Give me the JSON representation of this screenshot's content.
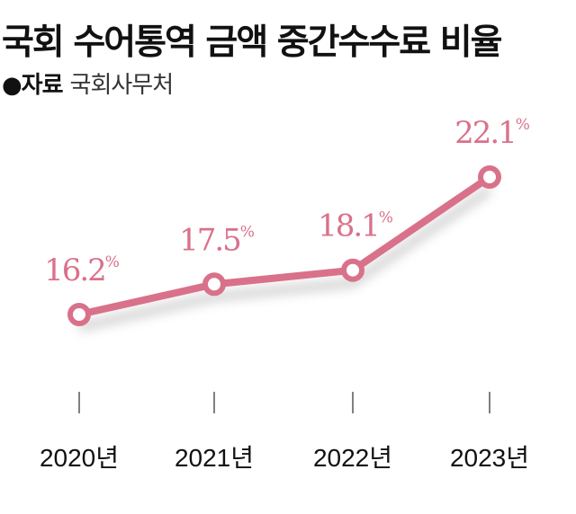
{
  "title": "국회 수어통역 금액 중간수수료 비율",
  "source": {
    "label": "●자료",
    "value": "국회사무처"
  },
  "chart_data": {
    "type": "line",
    "title": "국회 수어통역 금액 중간수수료 비율",
    "categories": [
      "2020년",
      "2021년",
      "2022년",
      "2023년"
    ],
    "values": [
      16.2,
      17.5,
      18.1,
      22.1
    ],
    "data_labels": [
      "16.2",
      "17.5",
      "18.1",
      "22.1"
    ],
    "unit": "%",
    "color": "#d9718a",
    "grid": false,
    "legend": "none",
    "ylim": [
      14,
      23
    ]
  }
}
